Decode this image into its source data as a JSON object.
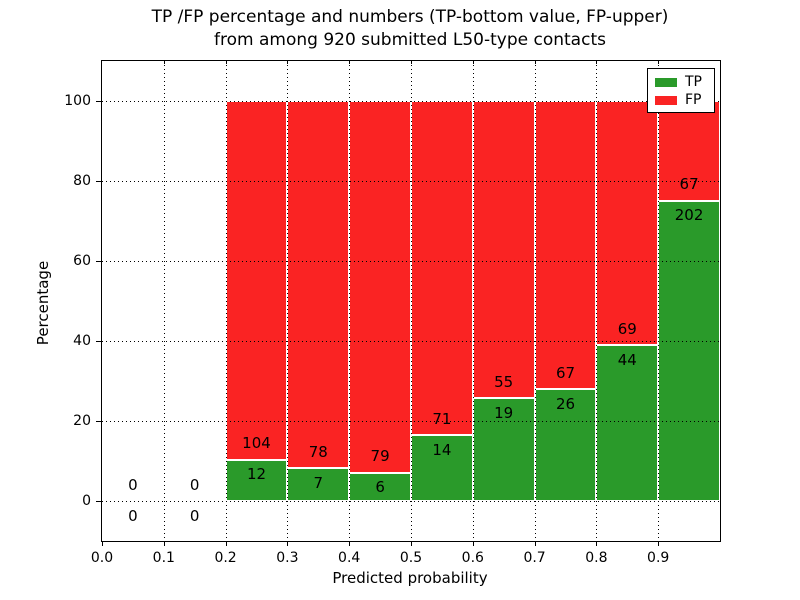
{
  "title_line1": "TP /FP percentage and numbers (TP-bottom value, FP-upper)",
  "title_line2": "from among 920 submitted L50-type contacts",
  "chart_data": {
    "type": "bar",
    "stacked": true,
    "normalized_to_percent": 100,
    "title": "TP /FP percentage and numbers (TP-bottom value, FP-upper) from among 920 submitted L50-type contacts",
    "xlabel": "Predicted probability",
    "ylabel": "Percentage",
    "total_submitted": 920,
    "xlim": [
      0.0,
      1.0
    ],
    "ylim": [
      -10,
      110
    ],
    "x_tick_labels": [
      "0.0",
      "0.1",
      "0.2",
      "0.3",
      "0.4",
      "0.5",
      "0.6",
      "0.7",
      "0.8",
      "0.9"
    ],
    "y_tick_labels": [
      "0",
      "20",
      "40",
      "60",
      "80",
      "100"
    ],
    "y_ticks": [
      0,
      20,
      40,
      60,
      80,
      100
    ],
    "grid": "dotted",
    "bin_width": 0.1,
    "bins": [
      {
        "x_start": 0.0,
        "tp": 0,
        "fp": 0
      },
      {
        "x_start": 0.1,
        "tp": 0,
        "fp": 0
      },
      {
        "x_start": 0.2,
        "tp": 12,
        "fp": 104
      },
      {
        "x_start": 0.3,
        "tp": 7,
        "fp": 78
      },
      {
        "x_start": 0.4,
        "tp": 6,
        "fp": 79
      },
      {
        "x_start": 0.5,
        "tp": 14,
        "fp": 71
      },
      {
        "x_start": 0.6,
        "tp": 19,
        "fp": 55
      },
      {
        "x_start": 0.7,
        "tp": 26,
        "fp": 67
      },
      {
        "x_start": 0.8,
        "tp": 44,
        "fp": 69
      },
      {
        "x_start": 0.9,
        "tp": 202,
        "fp": 67
      }
    ],
    "series": [
      {
        "name": "TP",
        "color": "#2a9a2a",
        "position": "bottom"
      },
      {
        "name": "FP",
        "color": "#fa2323",
        "position": "top"
      }
    ],
    "legend": {
      "position": "upper right",
      "entries": [
        "TP",
        "FP"
      ]
    }
  }
}
